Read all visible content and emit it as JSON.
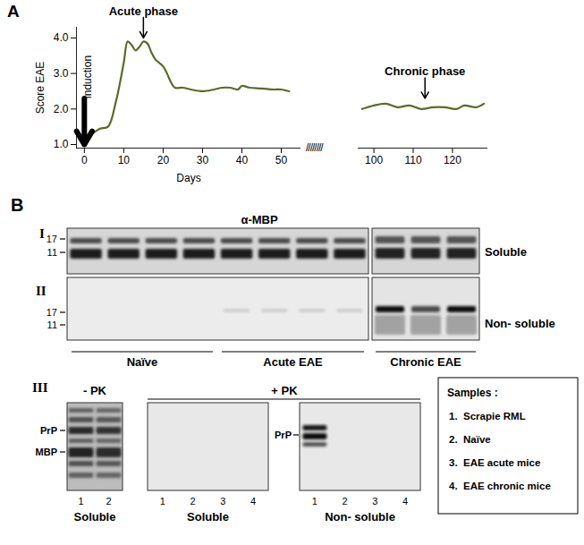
{
  "panel_labels": [
    "A",
    "B"
  ],
  "axis_break": "////////",
  "chart_data": [
    {
      "type": "line",
      "xlabel": "Days",
      "ylabel": "Score EAE",
      "x": [
        0,
        2,
        4,
        6,
        8,
        10,
        11,
        12,
        13,
        14,
        15,
        16,
        17,
        18,
        19,
        20,
        21,
        22,
        23,
        25,
        27,
        30,
        33,
        35,
        37,
        39,
        40,
        42,
        45,
        48,
        50,
        52
      ],
      "values": [
        1.1,
        1.3,
        1.45,
        1.5,
        2.2,
        3.3,
        3.9,
        3.8,
        3.65,
        3.75,
        3.9,
        3.85,
        3.6,
        3.4,
        3.3,
        3.2,
        3.0,
        2.75,
        2.6,
        2.6,
        2.55,
        2.5,
        2.55,
        2.6,
        2.6,
        2.55,
        2.65,
        2.6,
        2.58,
        2.55,
        2.55,
        2.5
      ],
      "color": "#5b6b2a",
      "xlim": [
        -2,
        55
      ],
      "xticks": [
        0,
        10,
        20,
        30,
        40,
        50
      ],
      "ylim": [
        0.9,
        4.3
      ],
      "yticks": [
        1,
        2,
        3,
        4
      ],
      "annotations": [
        {
          "text": "induction",
          "x": 0,
          "y": 2.3,
          "y_end": 1.0,
          "line_style": "bold"
        },
        {
          "text": "Acute phase",
          "x": 15,
          "y": 4.65,
          "y_end": 4.0
        }
      ]
    },
    {
      "type": "line",
      "x": [
        97,
        100,
        103,
        106,
        109,
        112,
        115,
        118,
        121,
        123,
        126,
        128
      ],
      "values": [
        2.0,
        2.1,
        2.15,
        2.05,
        2.1,
        2.0,
        2.05,
        2.05,
        2.0,
        2.1,
        2.05,
        2.15
      ],
      "color": "#5b6b2a",
      "xlim": [
        96,
        129
      ],
      "xticks": [
        100,
        110,
        120
      ],
      "ylim": [
        0.9,
        4.3
      ],
      "tick_labels": "x",
      "annotations": [
        {
          "text": "Chronic phase",
          "x": 113,
          "y": 2.95,
          "y_end": 2.3
        }
      ]
    }
  ],
  "blots": {
    "row_I": {
      "label": "I",
      "antibody": "α-MBP",
      "markers": [
        "17",
        "11"
      ],
      "fraction": "Soluble",
      "lanes": [
        4,
        4,
        3
      ]
    },
    "row_II": {
      "label": "II",
      "markers": [
        "17",
        "11"
      ],
      "fraction": "Non- soluble",
      "lanes": [
        4,
        4,
        3
      ]
    },
    "groups": [
      "Naïve",
      "Acute EAE",
      "Chronic EAE"
    ],
    "row_III": {
      "label": "III",
      "minus_pk": {
        "header": "- PK",
        "bands": [
          "PrP",
          "MBP"
        ],
        "lanes": [
          "1",
          "2"
        ],
        "fraction": "Soluble"
      },
      "plus_pk": {
        "header": "+ PK",
        "panels": [
          {
            "lanes": [
              "1",
              "2",
              "3",
              "4"
            ],
            "fraction": "Soluble"
          },
          {
            "lanes": [
              "1",
              "2",
              "3",
              "4"
            ],
            "fraction": "Non- soluble",
            "bands": [
              "PrP"
            ]
          }
        ]
      }
    },
    "samples": {
      "title": "Samples :",
      "items": [
        {
          "number": "1.",
          "text": "Scrapie RML"
        },
        {
          "number": "2.",
          "text": "Naïve"
        },
        {
          "number": "3.",
          "text": "EAE acute mice"
        },
        {
          "number": "4.",
          "text": "EAE chronic mice"
        }
      ]
    }
  }
}
